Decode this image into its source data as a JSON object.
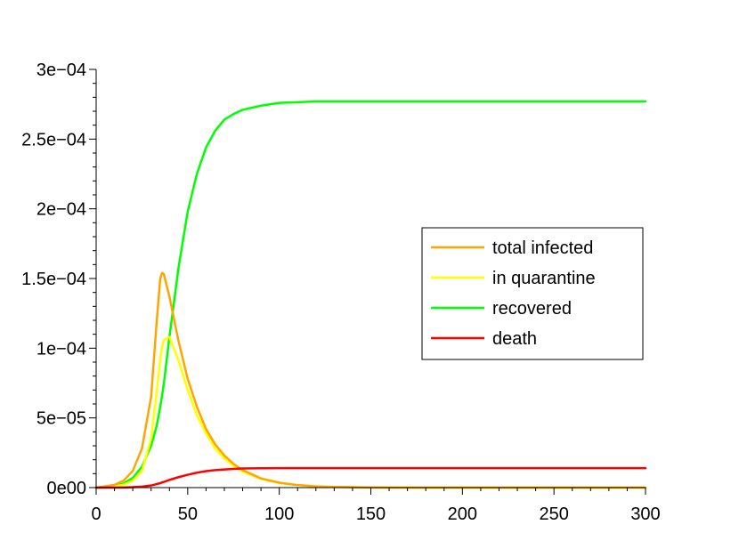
{
  "chart_data": {
    "type": "line",
    "title": "",
    "xlabel": "",
    "ylabel": "",
    "xlim": [
      0,
      300
    ],
    "ylim": [
      0,
      0.0003
    ],
    "grid": false,
    "legend_position": "center-right",
    "x_ticks": [
      {
        "value": 0,
        "label": "0"
      },
      {
        "value": 50,
        "label": "50"
      },
      {
        "value": 100,
        "label": "100"
      },
      {
        "value": 150,
        "label": "150"
      },
      {
        "value": 200,
        "label": "200"
      },
      {
        "value": 250,
        "label": "250"
      },
      {
        "value": 300,
        "label": "300"
      }
    ],
    "y_ticks": [
      {
        "value": 0,
        "label": "0e00"
      },
      {
        "value": 5e-05,
        "label": "5e−05"
      },
      {
        "value": 0.0001,
        "label": "1e−04"
      },
      {
        "value": 0.00015,
        "label": "1.5e−04"
      },
      {
        "value": 0.0002,
        "label": "2e−04"
      },
      {
        "value": 0.00025,
        "label": "2.5e−04"
      },
      {
        "value": 0.0003,
        "label": "3e−04"
      }
    ],
    "x": [
      0,
      5,
      10,
      15,
      20,
      25,
      30,
      33,
      35,
      36,
      37,
      40,
      45,
      50,
      55,
      60,
      65,
      70,
      75,
      80,
      90,
      100,
      110,
      120,
      130,
      140,
      150,
      175,
      200,
      225,
      250,
      275,
      300
    ],
    "series": [
      {
        "name": "total infected",
        "color": "#ffa500",
        "values": [
          0.0,
          1e-06,
          2e-06,
          5e-06,
          1.2e-05,
          2.8e-05,
          6.5e-05,
          0.000118,
          0.00015,
          0.000154,
          0.000153,
          0.000137,
          0.000105,
          7.8e-05,
          5.8e-05,
          4.2e-05,
          3.1e-05,
          2.3e-05,
          1.7e-05,
          1.25e-05,
          6.6e-06,
          3.5e-06,
          1.8e-06,
          9e-07,
          5e-07,
          3e-07,
          1e-07,
          0.0,
          0.0,
          0.0,
          0.0,
          0.0,
          0.0
        ]
      },
      {
        "name": "in quarantine",
        "color": "#ffff00",
        "values": [
          0.0,
          0.0,
          1e-06,
          2e-06,
          5e-06,
          1.2e-05,
          3.5e-05,
          6.8e-05,
          9.2e-05,
          0.000101,
          0.000106,
          0.000108,
          9.1e-05,
          7e-05,
          5.2e-05,
          3.9e-05,
          2.8e-05,
          2.1e-05,
          1.55e-05,
          1.15e-05,
          6.2e-06,
          3.3e-06,
          1.8e-06,
          9e-07,
          5e-07,
          3e-07,
          1e-07,
          0.0,
          0.0,
          0.0,
          0.0,
          0.0,
          0.0
        ]
      },
      {
        "name": "recovered",
        "color": "#00ff00",
        "values": [
          0.0,
          0.0,
          1e-06,
          3e-06,
          7e-06,
          1.5e-05,
          3e-05,
          4.4e-05,
          5.8e-05,
          6.6e-05,
          7.5e-05,
          0.000108,
          0.000158,
          0.000198,
          0.000225,
          0.000244,
          0.000256,
          0.000264,
          0.000268,
          0.000271,
          0.000274,
          0.000276,
          0.0002765,
          0.000277,
          0.000277,
          0.000277,
          0.000277,
          0.000277,
          0.000277,
          0.000277,
          0.000277,
          0.000277,
          0.000277
        ]
      },
      {
        "name": "death",
        "color": "#ff0000",
        "values": [
          0.0,
          0.0,
          0.0,
          1e-07,
          3e-07,
          7e-07,
          1.5e-06,
          2.5e-06,
          3.2e-06,
          3.7e-06,
          4.1e-06,
          5.5e-06,
          7.5e-06,
          9.2e-06,
          1.07e-05,
          1.18e-05,
          1.25e-05,
          1.3e-05,
          1.34e-05,
          1.37e-05,
          1.39e-05,
          1.4e-05,
          1.4e-05,
          1.4e-05,
          1.4e-05,
          1.4e-05,
          1.4e-05,
          1.4e-05,
          1.4e-05,
          1.4e-05,
          1.4e-05,
          1.4e-05,
          1.4e-05
        ]
      }
    ]
  }
}
